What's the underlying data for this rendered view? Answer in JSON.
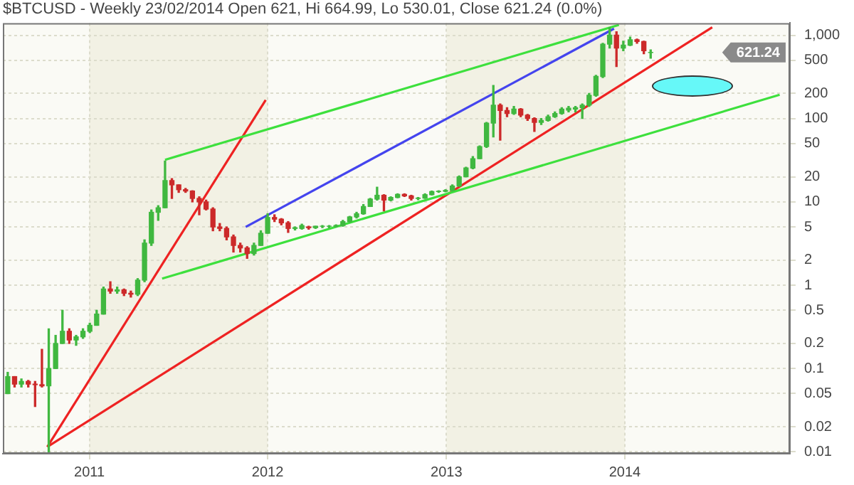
{
  "chart_data": {
    "type": "candlestick",
    "title": "$BTCUSD - Weekly 23/02/2014 Open 621, Hi 664.99, Lo 530.01, Close 621.24 (0.0%)",
    "x": [
      "2010-07-18",
      "2010-08-01",
      "2010-08-15",
      "2010-08-29",
      "2010-09-12",
      "2010-09-26",
      "2010-10-10",
      "2010-10-24",
      "2010-11-07",
      "2010-11-21",
      "2010-12-05",
      "2010-12-19",
      "2011-01-02",
      "2011-01-16",
      "2011-01-30",
      "2011-02-13",
      "2011-02-27",
      "2011-03-13",
      "2011-03-27",
      "2011-04-10",
      "2011-04-24",
      "2011-05-08",
      "2011-05-22",
      "2011-06-05",
      "2011-06-19",
      "2011-07-03",
      "2011-07-17",
      "2011-07-31",
      "2011-08-14",
      "2011-08-28",
      "2011-09-11",
      "2011-09-25",
      "2011-10-09",
      "2011-10-23",
      "2011-11-06",
      "2011-11-20",
      "2011-12-04",
      "2011-12-18",
      "2012-01-01",
      "2012-01-15",
      "2012-01-29",
      "2012-02-12",
      "2012-02-26",
      "2012-03-11",
      "2012-03-25",
      "2012-04-08",
      "2012-04-22",
      "2012-05-06",
      "2012-05-20",
      "2012-06-03",
      "2012-06-17",
      "2012-07-01",
      "2012-07-15",
      "2012-07-29",
      "2012-08-12",
      "2012-08-26",
      "2012-09-09",
      "2012-09-23",
      "2012-10-07",
      "2012-10-21",
      "2012-11-04",
      "2012-11-18",
      "2012-12-02",
      "2012-12-16",
      "2012-12-30",
      "2013-01-13",
      "2013-01-27",
      "2013-02-10",
      "2013-02-24",
      "2013-03-10",
      "2013-03-24",
      "2013-04-07",
      "2013-04-21",
      "2013-05-05",
      "2013-05-19",
      "2013-06-02",
      "2013-06-16",
      "2013-06-30",
      "2013-07-14",
      "2013-07-28",
      "2013-08-11",
      "2013-08-25",
      "2013-09-08",
      "2013-09-22",
      "2013-10-06",
      "2013-10-20",
      "2013-11-03",
      "2013-11-17",
      "2013-12-01",
      "2013-12-15",
      "2013-12-29",
      "2014-01-12",
      "2014-01-26",
      "2014-02-09",
      "2014-02-23"
    ],
    "ohlc": [
      [
        0.05,
        0.09,
        0.05,
        0.08
      ],
      [
        0.08,
        0.08,
        0.06,
        0.065
      ],
      [
        0.065,
        0.075,
        0.06,
        0.07
      ],
      [
        0.07,
        0.072,
        0.06,
        0.065
      ],
      [
        0.065,
        0.07,
        0.035,
        0.064
      ],
      [
        0.064,
        0.17,
        0.06,
        0.062
      ],
      [
        0.062,
        0.3,
        0.01,
        0.1
      ],
      [
        0.1,
        0.25,
        0.1,
        0.2
      ],
      [
        0.2,
        0.5,
        0.2,
        0.28
      ],
      [
        0.28,
        0.3,
        0.2,
        0.22
      ],
      [
        0.22,
        0.25,
        0.19,
        0.24
      ],
      [
        0.24,
        0.3,
        0.23,
        0.28
      ],
      [
        0.28,
        0.35,
        0.27,
        0.33
      ],
      [
        0.33,
        0.5,
        0.33,
        0.45
      ],
      [
        0.45,
        0.95,
        0.45,
        0.9
      ],
      [
        0.9,
        1.1,
        0.8,
        0.85
      ],
      [
        0.85,
        0.95,
        0.8,
        0.88
      ],
      [
        0.88,
        0.9,
        0.75,
        0.8
      ],
      [
        0.8,
        0.85,
        0.72,
        0.78
      ],
      [
        0.78,
        1.2,
        0.75,
        1.15
      ],
      [
        1.15,
        3.5,
        1.1,
        3.2
      ],
      [
        3.2,
        8,
        3,
        7.5
      ],
      [
        7.5,
        9,
        6,
        8.5
      ],
      [
        8.5,
        31,
        8.5,
        18
      ],
      [
        18,
        19,
        11,
        16
      ],
      [
        16,
        16,
        13,
        14
      ],
      [
        14,
        14.5,
        13,
        13.5
      ],
      [
        13.5,
        13.6,
        10,
        11
      ],
      [
        11,
        11.5,
        7,
        10
      ],
      [
        10,
        10.5,
        8,
        8.2
      ],
      [
        8.2,
        8.5,
        4.5,
        5
      ],
      [
        5,
        5.5,
        4.5,
        4.8
      ],
      [
        4.8,
        5,
        3.5,
        3.8
      ],
      [
        3.8,
        4,
        2.5,
        3
      ],
      [
        3,
        3.2,
        2.5,
        2.8
      ],
      [
        2.8,
        2.9,
        2.1,
        2.4
      ],
      [
        2.4,
        3.2,
        2.3,
        3
      ],
      [
        3,
        4.5,
        3,
        4.2
      ],
      [
        4.2,
        7.2,
        4.2,
        6.5
      ],
      [
        6.5,
        7,
        5.8,
        6.2
      ],
      [
        6.2,
        6.3,
        5.3,
        5.6
      ],
      [
        5.6,
        5.8,
        4.3,
        4.8
      ],
      [
        4.8,
        5,
        4.6,
        4.9
      ],
      [
        4.8,
        5.4,
        4.7,
        5.2
      ],
      [
        5,
        5.1,
        4.7,
        4.9
      ],
      [
        4.9,
        5.1,
        4.8,
        5.1
      ],
      [
        5.1,
        5.2,
        4.9,
        5.1
      ],
      [
        5.1,
        5.2,
        4.9,
        5.1
      ],
      [
        5.1,
        5.3,
        5,
        5.2
      ],
      [
        5.2,
        6,
        5.1,
        5.8
      ],
      [
        5.8,
        6.7,
        5.7,
        6.6
      ],
      [
        6.6,
        7.5,
        6.4,
        7.2
      ],
      [
        7.2,
        9.3,
        7.1,
        8.8
      ],
      [
        8.8,
        11,
        8.8,
        10.8
      ],
      [
        10.8,
        15,
        10.5,
        12
      ],
      [
        12,
        12.2,
        7.8,
        10.5
      ],
      [
        10.5,
        11.5,
        10.3,
        11.3
      ],
      [
        11.3,
        12.5,
        11.2,
        12.3
      ],
      [
        12.3,
        12.5,
        11.6,
        11.8
      ],
      [
        11.8,
        12,
        10.5,
        11
      ],
      [
        11,
        11.3,
        10.6,
        11.1
      ],
      [
        11.1,
        12.5,
        11,
        12.2
      ],
      [
        12.2,
        13.5,
        12.1,
        13.3
      ],
      [
        13.3,
        13.6,
        13,
        13.4
      ],
      [
        13.4,
        14,
        13.2,
        13.7
      ],
      [
        13.7,
        16,
        13.5,
        15.5
      ],
      [
        15.5,
        20.5,
        15.4,
        20
      ],
      [
        20,
        26,
        20,
        25.5
      ],
      [
        25.5,
        35,
        25,
        33
      ],
      [
        33,
        47,
        33,
        46
      ],
      [
        46,
        90,
        45,
        88
      ],
      [
        88,
        250,
        60,
        145
      ],
      [
        145,
        150,
        55,
        125
      ],
      [
        125,
        135,
        105,
        115
      ],
      [
        115,
        140,
        112,
        130
      ],
      [
        130,
        132,
        105,
        110
      ],
      [
        110,
        112,
        95,
        100
      ],
      [
        100,
        102,
        70,
        90
      ],
      [
        90,
        100,
        85,
        95
      ],
      [
        95,
        110,
        93,
        105
      ],
      [
        105,
        120,
        103,
        115
      ],
      [
        115,
        135,
        113,
        130
      ],
      [
        126,
        140,
        120,
        133
      ],
      [
        130,
        140,
        120,
        135
      ],
      [
        135,
        150,
        100,
        145
      ],
      [
        145,
        200,
        140,
        190
      ],
      [
        190,
        330,
        185,
        320
      ],
      [
        320,
        800,
        310,
        780
      ],
      [
        780,
        1240,
        700,
        1000
      ],
      [
        1000,
        1100,
        420,
        700
      ],
      [
        700,
        850,
        650,
        760
      ],
      [
        760,
        950,
        750,
        880
      ],
      [
        880,
        900,
        800,
        840
      ],
      [
        840,
        850,
        600,
        650
      ],
      [
        621,
        664.99,
        530.01,
        621.24
      ]
    ],
    "colors": [
      "#40b840",
      "#cc2a2a",
      "#40b840",
      "#cc2a2a",
      "#cc2a2a",
      "#cc2a2a",
      "#40b840",
      "#40b840",
      "#40b840",
      "#cc2a2a",
      "#40b840",
      "#40b840",
      "#40b840",
      "#40b840",
      "#40b840",
      "#cc2a2a",
      "#40b840",
      "#cc2a2a",
      "#cc2a2a",
      "#40b840",
      "#40b840",
      "#40b840",
      "#40b840",
      "#40b840",
      "#cc2a2a",
      "#cc2a2a",
      "#cc2a2a",
      "#cc2a2a",
      "#cc2a2a",
      "#cc2a2a",
      "#cc2a2a",
      "#cc2a2a",
      "#cc2a2a",
      "#cc2a2a",
      "#cc2a2a",
      "#cc2a2a",
      "#40b840",
      "#40b840",
      "#40b840",
      "#cc2a2a",
      "#cc2a2a",
      "#cc2a2a",
      "#40b840",
      "#40b840",
      "#cc2a2a",
      "#40b840",
      "#40b840",
      "#40b840",
      "#40b840",
      "#40b840",
      "#40b840",
      "#40b840",
      "#40b840",
      "#40b840",
      "#40b840",
      "#cc2a2a",
      "#40b840",
      "#40b840",
      "#cc2a2a",
      "#cc2a2a",
      "#40b840",
      "#40b840",
      "#40b840",
      "#40b840",
      "#40b840",
      "#40b840",
      "#40b840",
      "#40b840",
      "#40b840",
      "#40b840",
      "#40b840",
      "#40b840",
      "#cc2a2a",
      "#cc2a2a",
      "#40b840",
      "#cc2a2a",
      "#cc2a2a",
      "#cc2a2a",
      "#40b840",
      "#40b840",
      "#40b840",
      "#40b840",
      "#40b840",
      "#40b840",
      "#40b840",
      "#40b840",
      "#40b840",
      "#40b840",
      "#40b840",
      "#cc2a2a",
      "#40b840",
      "#40b840",
      "#cc2a2a",
      "#cc2a2a",
      "#40b840"
    ],
    "series": [
      {
        "type": "line",
        "color": "#3de03d",
        "x": [
          "2011-06-05",
          "2013-12-20"
        ],
        "values": [
          32,
          1330
        ]
      },
      {
        "type": "line",
        "color": "#3de03d",
        "x": [
          "2011-05-30",
          "2014-11-14"
        ],
        "values": [
          1.2,
          193
        ]
      },
      {
        "type": "line",
        "color": "#ee2222",
        "x": [
          "2010-10-07",
          "2011-12-28"
        ],
        "values": [
          0.0115,
          167
        ]
      },
      {
        "type": "line",
        "color": "#ee2222",
        "x": [
          "2010-10-07",
          "2014-06-29"
        ],
        "values": [
          0.0115,
          1245
        ]
      },
      {
        "type": "line",
        "color": "#4444ee",
        "x": [
          "2011-11-17",
          "2013-12-10"
        ],
        "values": [
          5,
          1200
        ]
      }
    ],
    "xlim": [
      "2010-07-08",
      "2014-12-05"
    ],
    "xticks": [
      {
        "value": "2011-01-01",
        "label": "2011"
      },
      {
        "value": "2012-01-01",
        "label": "2012"
      },
      {
        "value": "2013-01-01",
        "label": "2013"
      },
      {
        "value": "2014-01-01",
        "label": "2014"
      }
    ],
    "ylim": [
      0.0095,
      1400
    ],
    "yticks": [
      0.01,
      0.02,
      0.05,
      0.1,
      0.2,
      0.5,
      1,
      2,
      5,
      10,
      20,
      50,
      100,
      200,
      500,
      {
        "value": 1000,
        "label": "1,000"
      }
    ],
    "log": "y",
    "grid": true,
    "legend": false,
    "bands": [
      {
        "axis": "x",
        "from": "2011-01-01",
        "to": "2012-01-01",
        "color": "#f2f1e4"
      },
      {
        "axis": "x",
        "from": "2013-01-01",
        "to": "2014-01-01",
        "color": "#f2f1e4"
      }
    ],
    "annotations": [
      "621.24"
    ]
  }
}
